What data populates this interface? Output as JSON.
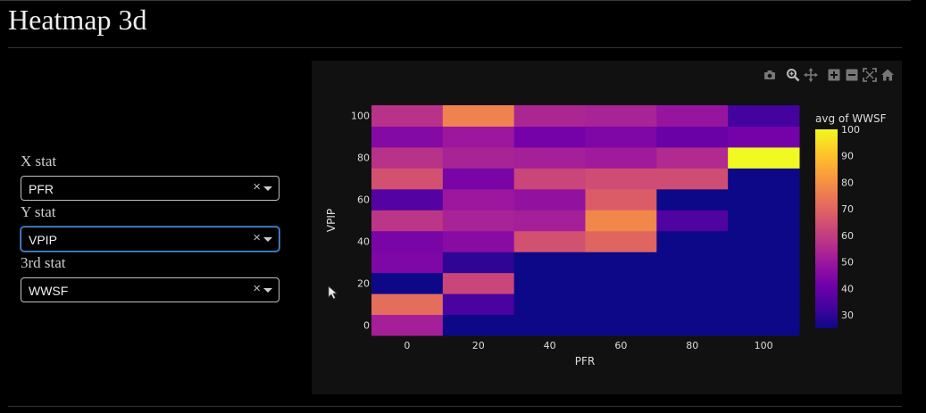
{
  "page": {
    "title": "Heatmap 3d"
  },
  "controls": {
    "x_stat": {
      "label": "X stat",
      "value": "PFR",
      "clear": "×"
    },
    "y_stat": {
      "label": "Y stat",
      "value": "VPIP",
      "clear": "×"
    },
    "third_stat": {
      "label": "3rd stat",
      "value": "WWSF",
      "clear": "×"
    }
  },
  "modebar": {
    "buttons": [
      "camera-icon",
      "zoom-icon",
      "pan-icon",
      "zoom-in-icon",
      "zoom-out-icon",
      "autoscale-icon",
      "reset-axes-icon"
    ]
  },
  "colors": {
    "background": "#000000",
    "plot_background": "#111111",
    "colorscale": [
      "#0d0887",
      "#46039f",
      "#7201a8",
      "#9c179e",
      "#bd3786",
      "#d8576b",
      "#ed7953",
      "#fb9f3a",
      "#fdca26",
      "#f0f921"
    ]
  },
  "chart_data": {
    "type": "heatmap",
    "xlabel": "PFR",
    "ylabel": "VPIP",
    "x_centers": [
      0,
      20,
      40,
      60,
      80,
      100
    ],
    "y_centers": [
      0,
      10,
      20,
      30,
      40,
      50,
      60,
      70,
      80,
      90,
      100
    ],
    "x_ticks": [
      "0",
      "20",
      "40",
      "60",
      "80",
      "100"
    ],
    "y_ticks": [
      "0",
      "20",
      "40",
      "60",
      "80",
      "100"
    ],
    "z_rows_bottom_to_top": [
      [
        52,
        25,
        25,
        25,
        25,
        25
      ],
      [
        72,
        34,
        25,
        25,
        25,
        25
      ],
      [
        25,
        62,
        25,
        25,
        25,
        25
      ],
      [
        44,
        30,
        25,
        25,
        25,
        25
      ],
      [
        43,
        46,
        65,
        70,
        25,
        25
      ],
      [
        58,
        53,
        52,
        78,
        35,
        25
      ],
      [
        36,
        50,
        48,
        68,
        25,
        25
      ],
      [
        65,
        43,
        62,
        64,
        64,
        25
      ],
      [
        57,
        53,
        52,
        51,
        55,
        100
      ],
      [
        45,
        50,
        42,
        44,
        40,
        42
      ],
      [
        57,
        77,
        54,
        53,
        49,
        33
      ]
    ],
    "colorbar": {
      "title": "avg of WWSF",
      "range": [
        25,
        100
      ],
      "ticks": [
        30,
        40,
        50,
        60,
        70,
        80,
        90,
        100
      ]
    }
  }
}
